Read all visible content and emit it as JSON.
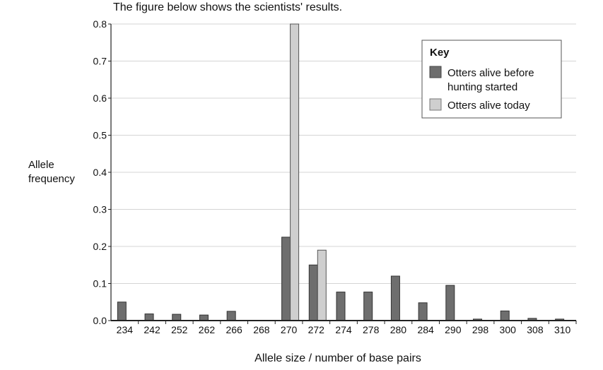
{
  "caption": "The figure below shows the scientists' results.",
  "chart_data": {
    "type": "bar",
    "title": "",
    "xlabel": "Allele size / number of base pairs",
    "ylabel": "Allele frequency",
    "ylim": [
      0,
      0.8
    ],
    "yticks": [
      "0.0",
      "0.1",
      "0.2",
      "0.3",
      "0.4",
      "0.5",
      "0.6",
      "0.7",
      "0.8"
    ],
    "grid": true,
    "legend_title": "Key",
    "legend_placement": "top-right",
    "categories": [
      "234",
      "242",
      "252",
      "262",
      "266",
      "268",
      "270",
      "272",
      "274",
      "278",
      "280",
      "284",
      "290",
      "298",
      "300",
      "308",
      "310"
    ],
    "series": [
      {
        "name": "Otters alive before hunting started",
        "color": "#6e6e6e",
        "values": [
          0.05,
          0.018,
          0.017,
          0.015,
          0.025,
          0,
          0.225,
          0.15,
          0.077,
          0.077,
          0.12,
          0.048,
          0.095,
          0.004,
          0.026,
          0.006,
          0.004
        ]
      },
      {
        "name": "Otters alive today",
        "color": "#cfcfcf",
        "values": [
          0,
          0,
          0,
          0,
          0,
          0,
          0.8,
          0.19,
          0,
          0,
          0,
          0,
          0,
          0,
          0,
          0,
          0
        ]
      }
    ]
  }
}
